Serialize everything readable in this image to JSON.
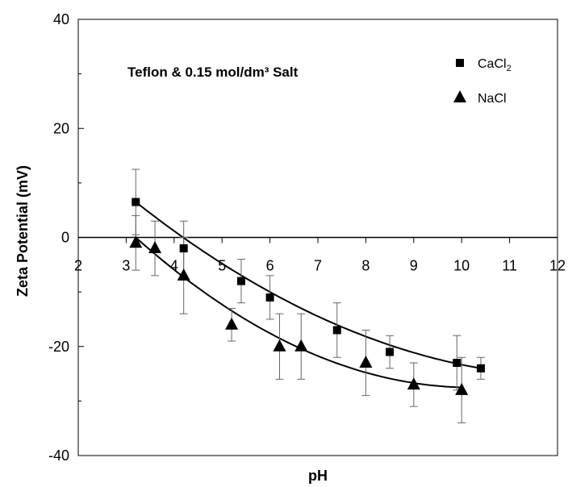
{
  "chart_data": {
    "type": "scatter",
    "title": "Teflon & 0.15 mol/dm³ Salt",
    "xlabel": "pH",
    "ylabel": "Zeta Potential (mV)",
    "xlim": [
      2,
      12
    ],
    "ylim": [
      -40,
      40
    ],
    "x_ticks": [
      "2",
      "3",
      "4",
      "5",
      "6",
      "7",
      "8",
      "9",
      "10",
      "11",
      "12"
    ],
    "y_ticks": [
      "40",
      "20",
      "0",
      "-20",
      "-40"
    ],
    "legend": {
      "placement": "top-right"
    },
    "grid": false,
    "series": [
      {
        "name": "CaCl",
        "name_subscript": "2",
        "marker": "square",
        "color": "#000000",
        "points": [
          {
            "x": 3.2,
            "y": 6.5,
            "err": 6.0
          },
          {
            "x": 4.2,
            "y": -2.0,
            "err": 5.0
          },
          {
            "x": 5.4,
            "y": -8.0,
            "err": 4.0
          },
          {
            "x": 6.0,
            "y": -11.0,
            "err": 4.0
          },
          {
            "x": 7.4,
            "y": -17.0,
            "err": 5.0
          },
          {
            "x": 8.5,
            "y": -21.0,
            "err": 3.0
          },
          {
            "x": 9.9,
            "y": -23.0,
            "err": 5.0
          },
          {
            "x": 10.4,
            "y": -24.0,
            "err": 2.0
          }
        ],
        "trend": {
          "type": "polynomial",
          "x_range": [
            3.2,
            10.4
          ],
          "points": [
            [
              3.2,
              6.5
            ],
            [
              6.0,
              -10.0
            ],
            [
              10.4,
              -24.0
            ]
          ]
        }
      },
      {
        "name": "NaCl",
        "name_subscript": "",
        "marker": "triangle",
        "color": "#000000",
        "points": [
          {
            "x": 3.2,
            "y": -1.0,
            "err": 5.0
          },
          {
            "x": 3.6,
            "y": -2.0,
            "err": 5.0
          },
          {
            "x": 4.2,
            "y": -7.0,
            "err": 7.0
          },
          {
            "x": 5.2,
            "y": -16.0,
            "err": 3.0
          },
          {
            "x": 6.2,
            "y": -20.0,
            "err": 6.0
          },
          {
            "x": 6.65,
            "y": -20.0,
            "err": 6.0
          },
          {
            "x": 8.0,
            "y": -23.0,
            "err": 6.0
          },
          {
            "x": 9.0,
            "y": -27.0,
            "err": 4.0
          },
          {
            "x": 10.0,
            "y": -28.0,
            "err": 6.0
          }
        ],
        "trend": {
          "type": "polynomial",
          "x_range": [
            3.2,
            10.0
          ],
          "points": [
            [
              3.2,
              0.0
            ],
            [
              6.2,
              -18.5
            ],
            [
              10.0,
              -27.5
            ]
          ]
        }
      }
    ]
  }
}
